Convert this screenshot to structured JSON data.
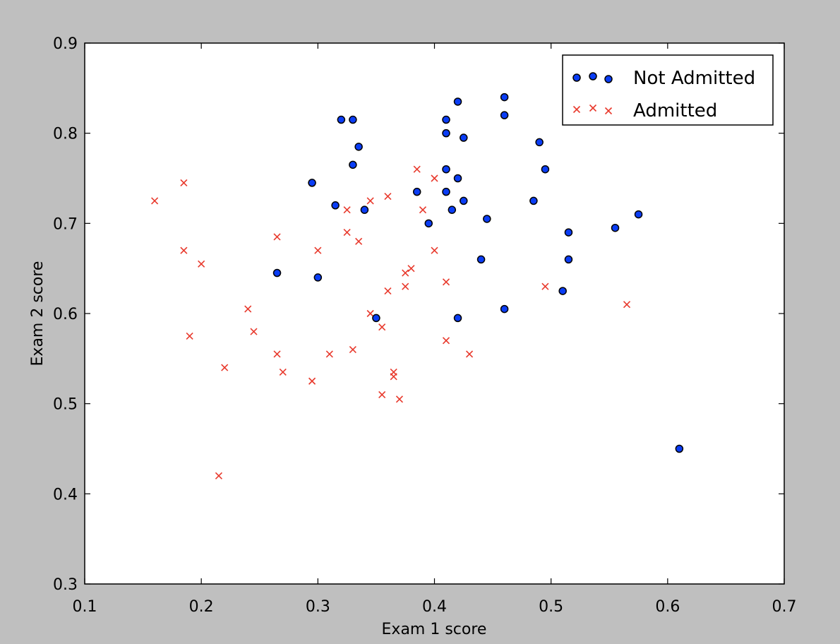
{
  "chart_data": {
    "type": "scatter",
    "title": "",
    "xlabel": "Exam 1 score",
    "ylabel": "Exam 2 score",
    "xlim": [
      0.1,
      0.7
    ],
    "ylim": [
      0.3,
      0.9
    ],
    "x_ticks": [
      "0.1",
      "0.2",
      "0.3",
      "0.4",
      "0.5",
      "0.6",
      "0.7"
    ],
    "y_ticks": [
      "0.3",
      "0.4",
      "0.5",
      "0.6",
      "0.7",
      "0.8",
      "0.9"
    ],
    "grid": false,
    "legend_position": "top-right",
    "series": [
      {
        "name": "Not Admitted",
        "marker": "circle",
        "color": "#0a3df5",
        "edge_color": "#000000",
        "points": [
          [
            0.32,
            0.815
          ],
          [
            0.33,
            0.815
          ],
          [
            0.335,
            0.785
          ],
          [
            0.33,
            0.765
          ],
          [
            0.295,
            0.745
          ],
          [
            0.315,
            0.72
          ],
          [
            0.34,
            0.715
          ],
          [
            0.265,
            0.645
          ],
          [
            0.3,
            0.64
          ],
          [
            0.35,
            0.595
          ],
          [
            0.385,
            0.735
          ],
          [
            0.395,
            0.7
          ],
          [
            0.41,
            0.815
          ],
          [
            0.41,
            0.8
          ],
          [
            0.41,
            0.76
          ],
          [
            0.41,
            0.735
          ],
          [
            0.415,
            0.715
          ],
          [
            0.42,
            0.835
          ],
          [
            0.42,
            0.75
          ],
          [
            0.42,
            0.595
          ],
          [
            0.425,
            0.795
          ],
          [
            0.425,
            0.725
          ],
          [
            0.44,
            0.66
          ],
          [
            0.445,
            0.705
          ],
          [
            0.46,
            0.84
          ],
          [
            0.46,
            0.82
          ],
          [
            0.46,
            0.605
          ],
          [
            0.485,
            0.725
          ],
          [
            0.49,
            0.79
          ],
          [
            0.495,
            0.76
          ],
          [
            0.51,
            0.625
          ],
          [
            0.515,
            0.69
          ],
          [
            0.515,
            0.66
          ],
          [
            0.555,
            0.695
          ],
          [
            0.575,
            0.71
          ],
          [
            0.61,
            0.45
          ]
        ]
      },
      {
        "name": "Admitted",
        "marker": "x",
        "color": "#e8392c",
        "points": [
          [
            0.16,
            0.725
          ],
          [
            0.185,
            0.745
          ],
          [
            0.185,
            0.67
          ],
          [
            0.2,
            0.655
          ],
          [
            0.19,
            0.575
          ],
          [
            0.22,
            0.54
          ],
          [
            0.215,
            0.42
          ],
          [
            0.24,
            0.605
          ],
          [
            0.245,
            0.58
          ],
          [
            0.265,
            0.685
          ],
          [
            0.265,
            0.555
          ],
          [
            0.27,
            0.535
          ],
          [
            0.295,
            0.525
          ],
          [
            0.3,
            0.67
          ],
          [
            0.31,
            0.555
          ],
          [
            0.325,
            0.715
          ],
          [
            0.325,
            0.69
          ],
          [
            0.33,
            0.56
          ],
          [
            0.335,
            0.68
          ],
          [
            0.345,
            0.725
          ],
          [
            0.345,
            0.6
          ],
          [
            0.355,
            0.585
          ],
          [
            0.355,
            0.51
          ],
          [
            0.36,
            0.73
          ],
          [
            0.36,
            0.625
          ],
          [
            0.365,
            0.535
          ],
          [
            0.365,
            0.53
          ],
          [
            0.37,
            0.505
          ],
          [
            0.375,
            0.645
          ],
          [
            0.375,
            0.63
          ],
          [
            0.38,
            0.65
          ],
          [
            0.385,
            0.76
          ],
          [
            0.39,
            0.715
          ],
          [
            0.4,
            0.75
          ],
          [
            0.4,
            0.67
          ],
          [
            0.41,
            0.635
          ],
          [
            0.41,
            0.57
          ],
          [
            0.43,
            0.555
          ],
          [
            0.495,
            0.63
          ],
          [
            0.565,
            0.61
          ]
        ]
      }
    ]
  }
}
